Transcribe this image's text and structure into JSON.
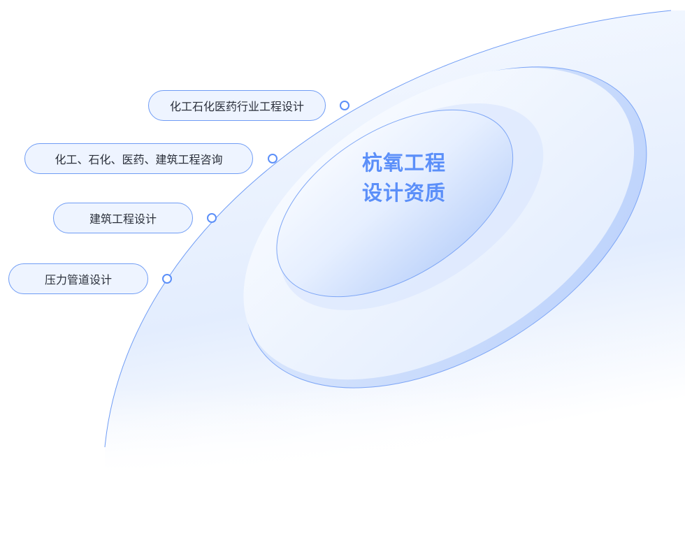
{
  "center": {
    "line1": "杭氧工程",
    "line2": "设计资质"
  },
  "items": [
    {
      "label": "化工石化医药行业工程设计"
    },
    {
      "label": "化工、石化、医药、建筑工程咨询"
    },
    {
      "label": "建筑工程设计"
    },
    {
      "label": "压力管道设计"
    }
  ],
  "colors": {
    "accent": "#5b8ff9",
    "pill_bg": "#eef4ff",
    "pill_border": "#6f9cf5"
  }
}
